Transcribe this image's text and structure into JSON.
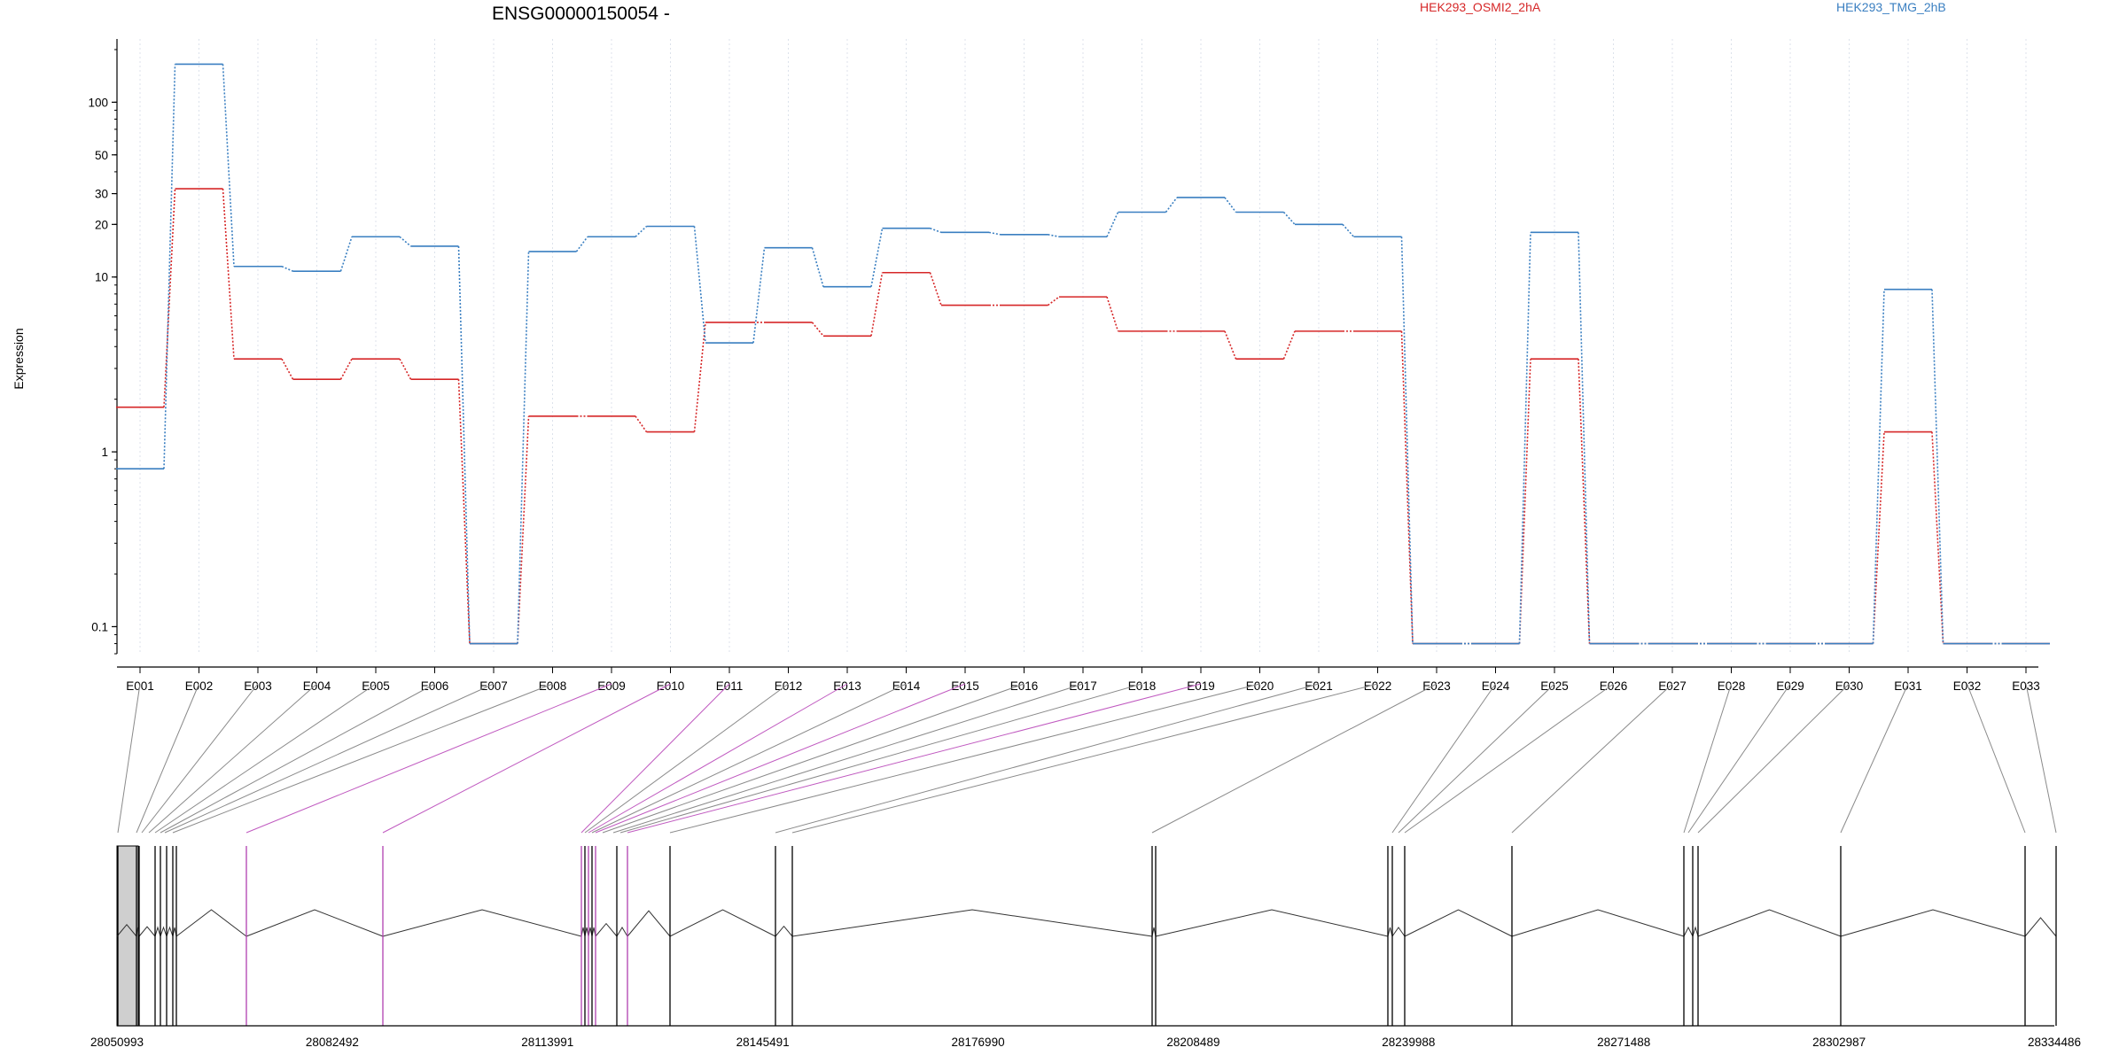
{
  "chart_data": {
    "type": "line",
    "title": "ENSG00000150054 -",
    "ylabel": "Expression",
    "yscale": "log",
    "ylim": [
      0.07,
      230
    ],
    "yticks": [
      0.1,
      1,
      10,
      20,
      30,
      50,
      100
    ],
    "ytick_labels": [
      "0.1",
      "1",
      "10",
      "20",
      "30",
      "50",
      "100"
    ],
    "categories": [
      "E001",
      "E002",
      "E003",
      "E004",
      "E005",
      "E006",
      "E007",
      "E008",
      "E009",
      "E010",
      "E011",
      "E012",
      "E013",
      "E014",
      "E015",
      "E016",
      "E017",
      "E018",
      "E019",
      "E020",
      "E021",
      "E022",
      "E023",
      "E024",
      "E025",
      "E026",
      "E027",
      "E028",
      "E029",
      "E030",
      "E031",
      "E032",
      "E033"
    ],
    "series": [
      {
        "name": "HEK293_OSMI2_2hA",
        "color": "#d62728",
        "values": [
          1.8,
          32,
          3.4,
          2.6,
          3.4,
          2.6,
          0.08,
          1.6,
          1.6,
          1.3,
          5.5,
          5.5,
          4.6,
          10.6,
          6.9,
          6.9,
          7.7,
          4.9,
          4.9,
          3.4,
          4.9,
          4.9,
          0.08,
          0.08,
          3.4,
          0.08,
          0.08,
          0.08,
          0.08,
          0.08,
          1.3,
          0.08,
          0.08
        ]
      },
      {
        "name": "HEK293_TMG_2hB",
        "color": "#3a7fc1",
        "values": [
          0.8,
          165,
          11.5,
          10.8,
          17,
          15,
          0.08,
          14,
          17,
          19.5,
          4.2,
          14.7,
          8.8,
          19,
          18,
          17.5,
          17,
          23.5,
          28.5,
          23.5,
          20,
          17,
          0.08,
          0.08,
          18,
          0.08,
          0.08,
          0.08,
          0.08,
          0.08,
          8.5,
          0.08,
          0.08
        ]
      }
    ],
    "gene_model": {
      "coordinate_labels": [
        "28050993",
        "28082492",
        "28113991",
        "28145491",
        "28176990",
        "28208489",
        "28239988",
        "28271488",
        "28302987",
        "28334486"
      ]
    }
  }
}
